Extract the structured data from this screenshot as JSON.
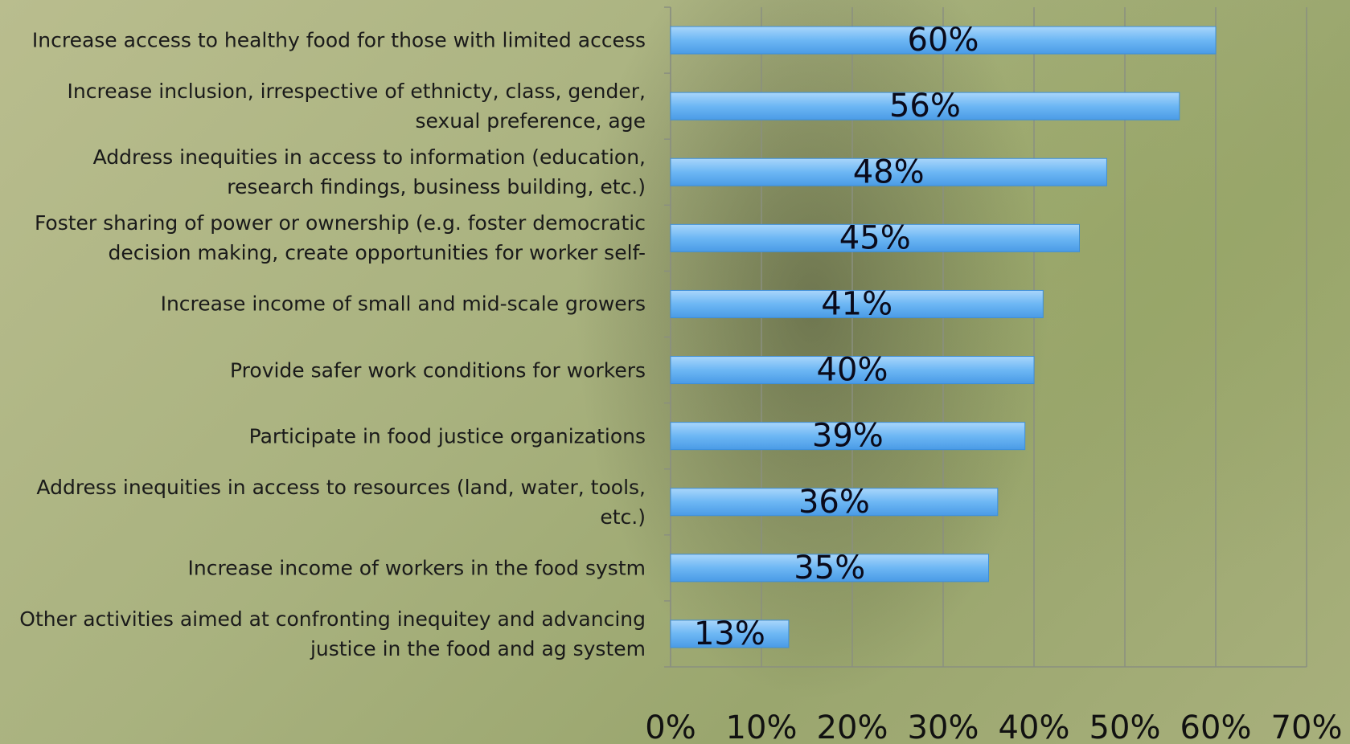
{
  "chart_data": {
    "type": "bar",
    "orientation": "horizontal",
    "categories": [
      "Increase access to healthy food for those with limited access",
      "Increase inclusion, irrespective of ethnicty, class, gender, sexual preference, age",
      "Address inequities in access to information (education, research findings, business building, etc.)",
      "Foster sharing of power or ownership (e.g. foster democratic decision making, create opportunities for worker self-",
      "Increase income of small and mid-scale growers",
      "Provide safer work conditions for workers",
      "Participate in food justice organizations",
      "Address inequities in access to resources (land, water, tools, etc.)",
      "Increase income of workers in the food systm",
      "Other activities aimed at confronting inequitey and advancing justice in the food and ag system"
    ],
    "values": [
      60,
      56,
      48,
      45,
      41,
      40,
      39,
      36,
      35,
      13
    ],
    "value_labels": [
      "60%",
      "56%",
      "48%",
      "45%",
      "41%",
      "40%",
      "39%",
      "36%",
      "35%",
      "13%"
    ],
    "color": "#6db7f4",
    "xlim": [
      0,
      70
    ],
    "xticks": [
      {
        "value": 0,
        "label": "0%"
      },
      {
        "value": 10,
        "label": "10%"
      },
      {
        "value": 20,
        "label": "20%"
      },
      {
        "value": 30,
        "label": "30%"
      },
      {
        "value": 40,
        "label": "40%"
      },
      {
        "value": 50,
        "label": "50%"
      },
      {
        "value": 60,
        "label": "60%"
      },
      {
        "value": 70,
        "label": "70%"
      }
    ],
    "grid": true
  }
}
